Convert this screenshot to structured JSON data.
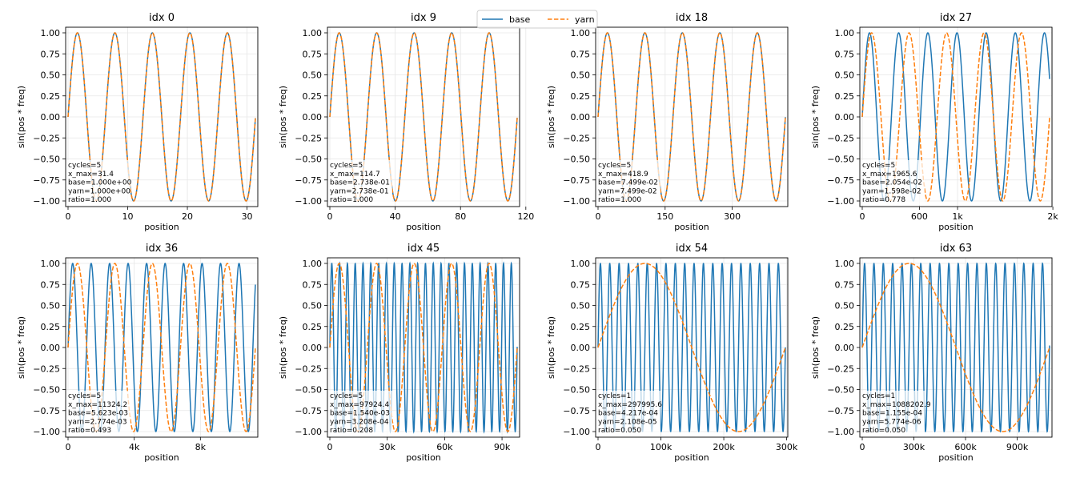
{
  "colors": {
    "base": "#1f77b4",
    "yarn": "#ff7f0e",
    "grid": "#e6e6e6",
    "axis": "#000000"
  },
  "legend": {
    "placement": "top-center",
    "entries": [
      {
        "name": "base",
        "style": "solid"
      },
      {
        "name": "yarn",
        "style": "dashed"
      }
    ]
  },
  "chart_data": [
    {
      "type": "line",
      "title": "idx 0",
      "xlabel": "position",
      "ylabel": "sin(pos * freq)",
      "xlim": [
        0,
        31.4
      ],
      "ylim": [
        -1.0,
        1.0
      ],
      "grid": true,
      "xticks": [
        {
          "value": 0,
          "label": "0"
        },
        {
          "value": 10,
          "label": "10"
        },
        {
          "value": 20,
          "label": "20"
        },
        {
          "value": 30,
          "label": "30"
        }
      ],
      "yticks": [
        {
          "value": -1.0,
          "label": "−1.00"
        },
        {
          "value": -0.75,
          "label": "−0.75"
        },
        {
          "value": -0.5,
          "label": "−0.50"
        },
        {
          "value": -0.25,
          "label": "−0.25"
        },
        {
          "value": 0.0,
          "label": "0.00"
        },
        {
          "value": 0.25,
          "label": "0.25"
        },
        {
          "value": 0.5,
          "label": "0.50"
        },
        {
          "value": 0.75,
          "label": "0.75"
        },
        {
          "value": 1.0,
          "label": "1.00"
        }
      ],
      "series": [
        {
          "name": "base",
          "freq": 1.0,
          "style": "solid"
        },
        {
          "name": "yarn",
          "freq": 1.0,
          "style": "dashed"
        }
      ],
      "annotation": [
        "cycles=5",
        "x_max=31.4",
        "base=1.000e+00",
        "yarn=1.000e+00",
        "ratio=1.000"
      ]
    },
    {
      "type": "line",
      "title": "idx 9",
      "xlabel": "position",
      "ylabel": "sin(pos * freq)",
      "xlim": [
        0,
        114.7
      ],
      "ylim": [
        -1.0,
        1.0
      ],
      "grid": true,
      "xticks": [
        {
          "value": 0,
          "label": "0"
        },
        {
          "value": 40,
          "label": "40"
        },
        {
          "value": 80,
          "label": "80"
        },
        {
          "value": 120,
          "label": "120"
        }
      ],
      "yticks": [
        {
          "value": -1.0,
          "label": "−1.00"
        },
        {
          "value": -0.75,
          "label": "−0.75"
        },
        {
          "value": -0.5,
          "label": "−0.50"
        },
        {
          "value": -0.25,
          "label": "−0.25"
        },
        {
          "value": 0.0,
          "label": "0.00"
        },
        {
          "value": 0.25,
          "label": "0.25"
        },
        {
          "value": 0.5,
          "label": "0.50"
        },
        {
          "value": 0.75,
          "label": "0.75"
        },
        {
          "value": 1.0,
          "label": "1.00"
        }
      ],
      "series": [
        {
          "name": "base",
          "freq": 0.2738,
          "style": "solid"
        },
        {
          "name": "yarn",
          "freq": 0.2738,
          "style": "dashed"
        }
      ],
      "annotation": [
        "cycles=5",
        "x_max=114.7",
        "base=2.738e-01",
        "yarn=2.738e-01",
        "ratio=1.000"
      ]
    },
    {
      "type": "line",
      "title": "idx 18",
      "xlabel": "position",
      "ylabel": "sin(pos * freq)",
      "xlim": [
        0,
        418.9
      ],
      "ylim": [
        -1.0,
        1.0
      ],
      "grid": true,
      "xticks": [
        {
          "value": 0,
          "label": "0"
        },
        {
          "value": 150,
          "label": "150"
        },
        {
          "value": 300,
          "label": "300"
        }
      ],
      "yticks": [
        {
          "value": -1.0,
          "label": "−1.00"
        },
        {
          "value": -0.75,
          "label": "−0.75"
        },
        {
          "value": -0.5,
          "label": "−0.50"
        },
        {
          "value": -0.25,
          "label": "−0.25"
        },
        {
          "value": 0.0,
          "label": "0.00"
        },
        {
          "value": 0.25,
          "label": "0.25"
        },
        {
          "value": 0.5,
          "label": "0.50"
        },
        {
          "value": 0.75,
          "label": "0.75"
        },
        {
          "value": 1.0,
          "label": "1.00"
        }
      ],
      "series": [
        {
          "name": "base",
          "freq": 0.07499,
          "style": "solid"
        },
        {
          "name": "yarn",
          "freq": 0.07499,
          "style": "dashed"
        }
      ],
      "annotation": [
        "cycles=5",
        "x_max=418.9",
        "base=7.499e-02",
        "yarn=7.499e-02",
        "ratio=1.000"
      ]
    },
    {
      "type": "line",
      "title": "idx 27",
      "xlabel": "position",
      "ylabel": "sin(pos * freq)",
      "xlim": [
        0,
        1965.6
      ],
      "ylim": [
        -1.0,
        1.0
      ],
      "grid": true,
      "xticks": [
        {
          "value": 0,
          "label": "0"
        },
        {
          "value": 600,
          "label": "600"
        },
        {
          "value": 1000,
          "label": "1k"
        },
        {
          "value": 2000,
          "label": "2k"
        }
      ],
      "yticks": [
        {
          "value": -1.0,
          "label": "−1.00"
        },
        {
          "value": -0.75,
          "label": "−0.75"
        },
        {
          "value": -0.5,
          "label": "−0.50"
        },
        {
          "value": -0.25,
          "label": "−0.25"
        },
        {
          "value": 0.0,
          "label": "0.00"
        },
        {
          "value": 0.25,
          "label": "0.25"
        },
        {
          "value": 0.5,
          "label": "0.50"
        },
        {
          "value": 0.75,
          "label": "0.75"
        },
        {
          "value": 1.0,
          "label": "1.00"
        }
      ],
      "series": [
        {
          "name": "base",
          "freq": 0.02054,
          "style": "solid"
        },
        {
          "name": "yarn",
          "freq": 0.01598,
          "style": "dashed"
        }
      ],
      "annotation": [
        "cycles=5",
        "x_max=1965.6",
        "base=2.054e-02",
        "yarn=1.598e-02",
        "ratio=0.778"
      ]
    },
    {
      "type": "line",
      "title": "idx 36",
      "xlabel": "position",
      "ylabel": "sin(pos * freq)",
      "xlim": [
        0,
        11324.2
      ],
      "ylim": [
        -1.0,
        1.0
      ],
      "grid": true,
      "xticks": [
        {
          "value": 0,
          "label": "0"
        },
        {
          "value": 4000,
          "label": "4k"
        },
        {
          "value": 8000,
          "label": "8k"
        }
      ],
      "yticks": [
        {
          "value": -1.0,
          "label": "−1.00"
        },
        {
          "value": -0.75,
          "label": "−0.75"
        },
        {
          "value": -0.5,
          "label": "−0.50"
        },
        {
          "value": -0.25,
          "label": "−0.25"
        },
        {
          "value": 0.0,
          "label": "0.00"
        },
        {
          "value": 0.25,
          "label": "0.25"
        },
        {
          "value": 0.5,
          "label": "0.50"
        },
        {
          "value": 0.75,
          "label": "0.75"
        },
        {
          "value": 1.0,
          "label": "1.00"
        }
      ],
      "series": [
        {
          "name": "base",
          "freq": 0.005623,
          "style": "solid"
        },
        {
          "name": "yarn",
          "freq": 0.002774,
          "style": "dashed"
        }
      ],
      "annotation": [
        "cycles=5",
        "x_max=11324.2",
        "base=5.623e-03",
        "yarn=2.774e-03",
        "ratio=0.493"
      ]
    },
    {
      "type": "line",
      "title": "idx 45",
      "xlabel": "position",
      "ylabel": "sin(pos * freq)",
      "xlim": [
        0,
        97924.4
      ],
      "ylim": [
        -1.0,
        1.0
      ],
      "grid": true,
      "xticks": [
        {
          "value": 0,
          "label": "0"
        },
        {
          "value": 30000,
          "label": "30k"
        },
        {
          "value": 60000,
          "label": "60k"
        },
        {
          "value": 90000,
          "label": "90k"
        }
      ],
      "yticks": [
        {
          "value": -1.0,
          "label": "−1.00"
        },
        {
          "value": -0.75,
          "label": "−0.75"
        },
        {
          "value": -0.5,
          "label": "−0.50"
        },
        {
          "value": -0.25,
          "label": "−0.25"
        },
        {
          "value": 0.0,
          "label": "0.00"
        },
        {
          "value": 0.25,
          "label": "0.25"
        },
        {
          "value": 0.5,
          "label": "0.50"
        },
        {
          "value": 0.75,
          "label": "0.75"
        },
        {
          "value": 1.0,
          "label": "1.00"
        }
      ],
      "series": [
        {
          "name": "base",
          "freq": 0.00154,
          "style": "solid"
        },
        {
          "name": "yarn",
          "freq": 0.0003208,
          "style": "dashed"
        }
      ],
      "annotation": [
        "cycles=5",
        "x_max=97924.4",
        "base=1.540e-03",
        "yarn=3.208e-04",
        "ratio=0.208"
      ]
    },
    {
      "type": "line",
      "title": "idx 54",
      "xlabel": "position",
      "ylabel": "sin(pos * freq)",
      "xlim": [
        0,
        297995.6
      ],
      "ylim": [
        -1.0,
        1.0
      ],
      "grid": true,
      "xticks": [
        {
          "value": 0,
          "label": "0"
        },
        {
          "value": 100000,
          "label": "100k"
        },
        {
          "value": 200000,
          "label": "200k"
        },
        {
          "value": 300000,
          "label": "300k"
        }
      ],
      "yticks": [
        {
          "value": -1.0,
          "label": "−1.00"
        },
        {
          "value": -0.75,
          "label": "−0.75"
        },
        {
          "value": -0.5,
          "label": "−0.50"
        },
        {
          "value": -0.25,
          "label": "−0.25"
        },
        {
          "value": 0.0,
          "label": "0.00"
        },
        {
          "value": 0.25,
          "label": "0.25"
        },
        {
          "value": 0.5,
          "label": "0.50"
        },
        {
          "value": 0.75,
          "label": "0.75"
        },
        {
          "value": 1.0,
          "label": "1.00"
        }
      ],
      "series": [
        {
          "name": "base",
          "freq": 0.0004217,
          "style": "solid"
        },
        {
          "name": "yarn",
          "freq": 2.108e-05,
          "style": "dashed"
        }
      ],
      "annotation": [
        "cycles=1",
        "x_max=297995.6",
        "base=4.217e-04",
        "yarn=2.108e-05",
        "ratio=0.050"
      ]
    },
    {
      "type": "line",
      "title": "idx 63",
      "xlabel": "position",
      "ylabel": "sin(pos * freq)",
      "xlim": [
        0,
        1088202.9
      ],
      "ylim": [
        -1.0,
        1.0
      ],
      "grid": true,
      "xticks": [
        {
          "value": 0,
          "label": "0"
        },
        {
          "value": 300000,
          "label": "300k"
        },
        {
          "value": 600000,
          "label": "600k"
        },
        {
          "value": 900000,
          "label": "900k"
        }
      ],
      "yticks": [
        {
          "value": -1.0,
          "label": "−1.00"
        },
        {
          "value": -0.75,
          "label": "−0.75"
        },
        {
          "value": -0.5,
          "label": "−0.50"
        },
        {
          "value": -0.25,
          "label": "−0.25"
        },
        {
          "value": 0.0,
          "label": "0.00"
        },
        {
          "value": 0.25,
          "label": "0.25"
        },
        {
          "value": 0.5,
          "label": "0.50"
        },
        {
          "value": 0.75,
          "label": "0.75"
        },
        {
          "value": 1.0,
          "label": "1.00"
        }
      ],
      "series": [
        {
          "name": "base",
          "freq": 0.0001155,
          "style": "solid"
        },
        {
          "name": "yarn",
          "freq": 5.774e-06,
          "style": "dashed"
        }
      ],
      "annotation": [
        "cycles=1",
        "x_max=1088202.9",
        "base=1.155e-04",
        "yarn=5.774e-06",
        "ratio=0.050"
      ]
    }
  ]
}
